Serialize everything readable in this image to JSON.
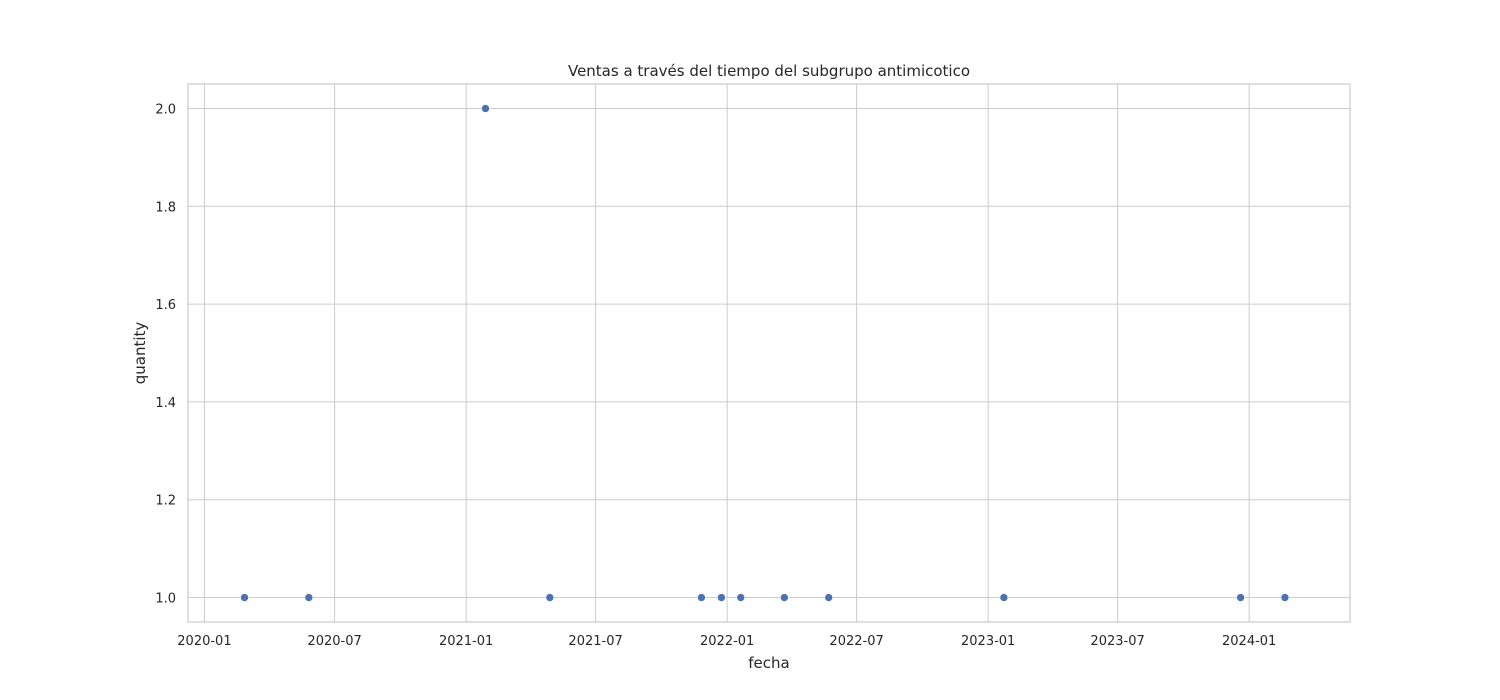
{
  "chart_data": {
    "type": "scatter",
    "title": "Ventas a través del tiempo del subgrupo antimicotico",
    "xlabel": "fecha",
    "ylabel": "quantity",
    "x_is_date": true,
    "xlim": [
      "2019-12-09",
      "2024-05-21"
    ],
    "ylim": [
      0.95,
      2.05
    ],
    "x_ticks": [
      "2020-01-01",
      "2020-07-01",
      "2021-01-01",
      "2021-07-01",
      "2022-01-01",
      "2022-07-01",
      "2023-01-01",
      "2023-07-01",
      "2024-01-01"
    ],
    "x_tick_labels": [
      "2020-01",
      "2020-07",
      "2021-01",
      "2021-07",
      "2022-01",
      "2022-07",
      "2023-01",
      "2023-07",
      "2024-01"
    ],
    "y_ticks": [
      1.0,
      1.2,
      1.4,
      1.6,
      1.8,
      2.0
    ],
    "y_tick_labels": [
      "1.0",
      "1.2",
      "1.4",
      "1.6",
      "1.8",
      "2.0"
    ],
    "grid": true,
    "marker_color": "#4c72b0",
    "grid_color": "#cccccc",
    "points": [
      {
        "x": "2020-02-26",
        "y": 1
      },
      {
        "x": "2020-05-26",
        "y": 1
      },
      {
        "x": "2021-01-28",
        "y": 2
      },
      {
        "x": "2021-04-28",
        "y": 1
      },
      {
        "x": "2021-11-26",
        "y": 1
      },
      {
        "x": "2021-12-24",
        "y": 1
      },
      {
        "x": "2022-01-20",
        "y": 1
      },
      {
        "x": "2022-03-22",
        "y": 1
      },
      {
        "x": "2022-05-23",
        "y": 1
      },
      {
        "x": "2023-01-23",
        "y": 1
      },
      {
        "x": "2023-12-20",
        "y": 1
      },
      {
        "x": "2024-02-20",
        "y": 1
      }
    ]
  }
}
